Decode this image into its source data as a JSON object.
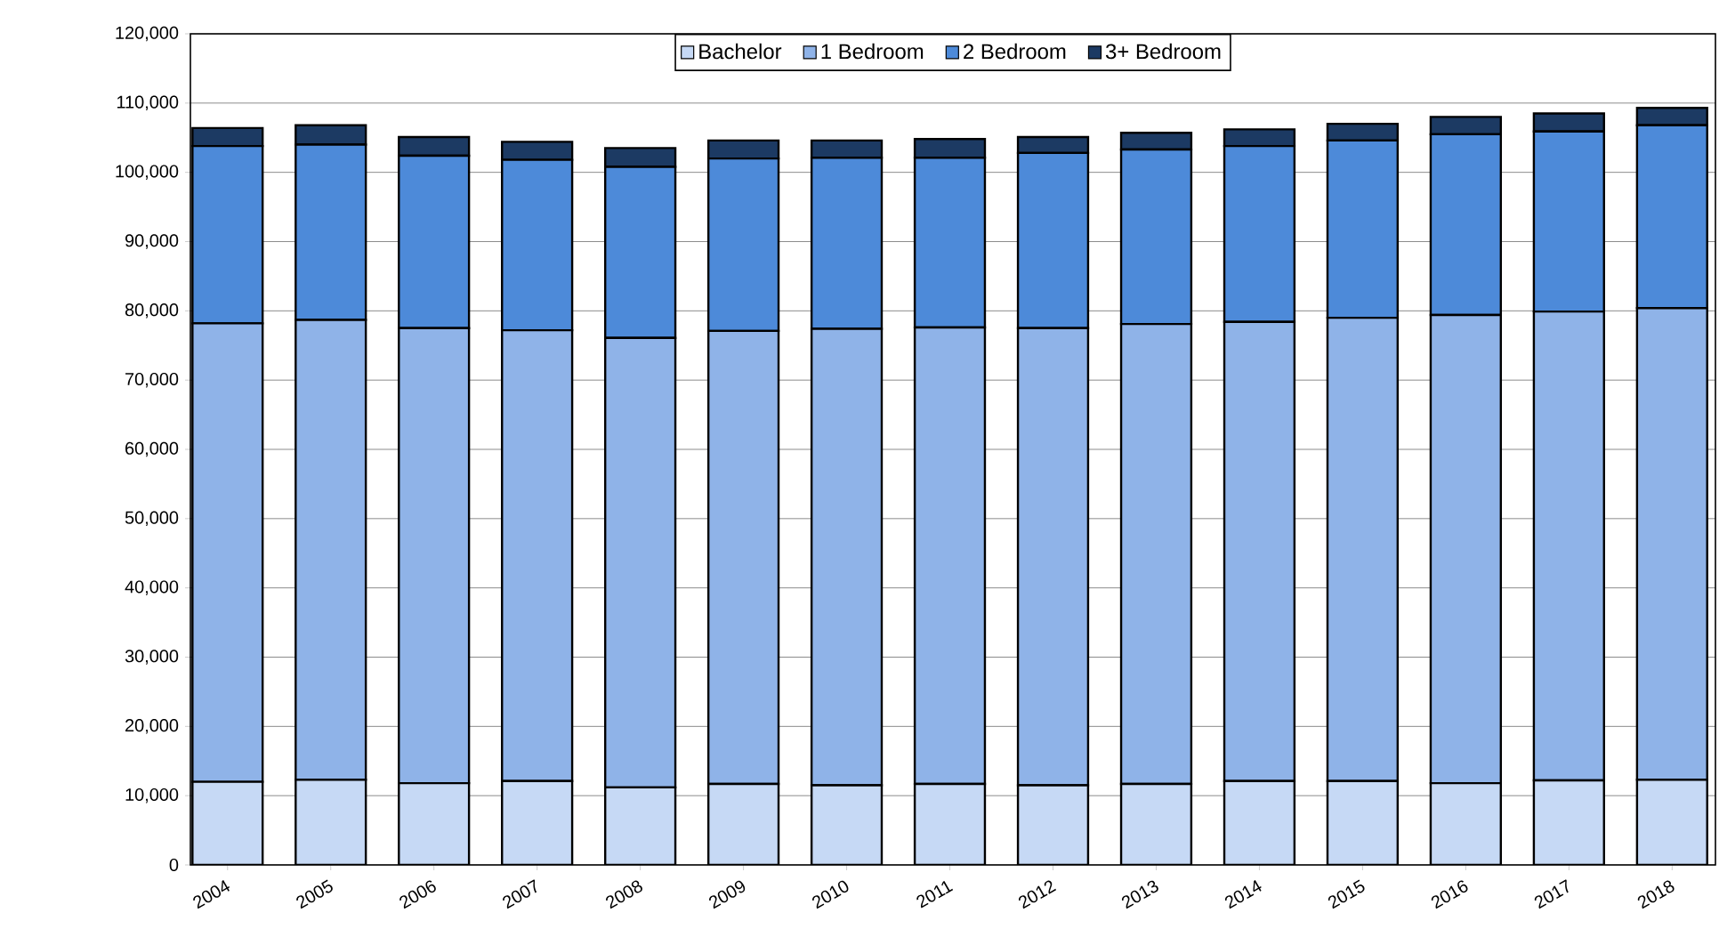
{
  "chart_data": {
    "type": "bar",
    "stacked": true,
    "categories": [
      "2004",
      "2005",
      "2006",
      "2007",
      "2008",
      "2009",
      "2010",
      "2011",
      "2012",
      "2013",
      "2014",
      "2015",
      "2016",
      "2017",
      "2018"
    ],
    "series": [
      {
        "name": "Bachelor",
        "color": "#c6d9f5",
        "values": [
          12000,
          12300,
          11800,
          12100,
          11200,
          11700,
          11500,
          11700,
          11500,
          11700,
          12100,
          12100,
          11800,
          12200,
          12300
        ]
      },
      {
        "name": "1 Bedroom",
        "color": "#8fb3e8",
        "values": [
          66200,
          66400,
          65700,
          65100,
          64900,
          65400,
          65900,
          65900,
          66000,
          66400,
          66300,
          66900,
          67600,
          67700,
          68100
        ]
      },
      {
        "name": "2 Bedroom",
        "color": "#4d8ad9",
        "values": [
          25600,
          25300,
          24900,
          24600,
          24700,
          24900,
          24700,
          24500,
          25300,
          25200,
          25400,
          25600,
          26100,
          26000,
          26400
        ]
      },
      {
        "name": "3+ Bedroom",
        "color": "#1c3a63",
        "values": [
          2600,
          2800,
          2700,
          2600,
          2700,
          2600,
          2500,
          2700,
          2300,
          2400,
          2400,
          2400,
          2500,
          2600,
          2500
        ]
      }
    ],
    "ylim": [
      0,
      120000
    ],
    "yticks": [
      {
        "value": 0,
        "label": "0"
      },
      {
        "value": 10000,
        "label": "10,000"
      },
      {
        "value": 20000,
        "label": "20,000"
      },
      {
        "value": 30000,
        "label": "30,000"
      },
      {
        "value": 40000,
        "label": "40,000"
      },
      {
        "value": 50000,
        "label": "50,000"
      },
      {
        "value": 60000,
        "label": "60,000"
      },
      {
        "value": 70000,
        "label": "70,000"
      },
      {
        "value": 80000,
        "label": "80,000"
      },
      {
        "value": 90000,
        "label": "90,000"
      },
      {
        "value": 100000,
        "label": "100,000"
      },
      {
        "value": 110000,
        "label": "110,000"
      },
      {
        "value": 120000,
        "label": "120,000"
      }
    ],
    "grid": "y",
    "legend": "top"
  }
}
